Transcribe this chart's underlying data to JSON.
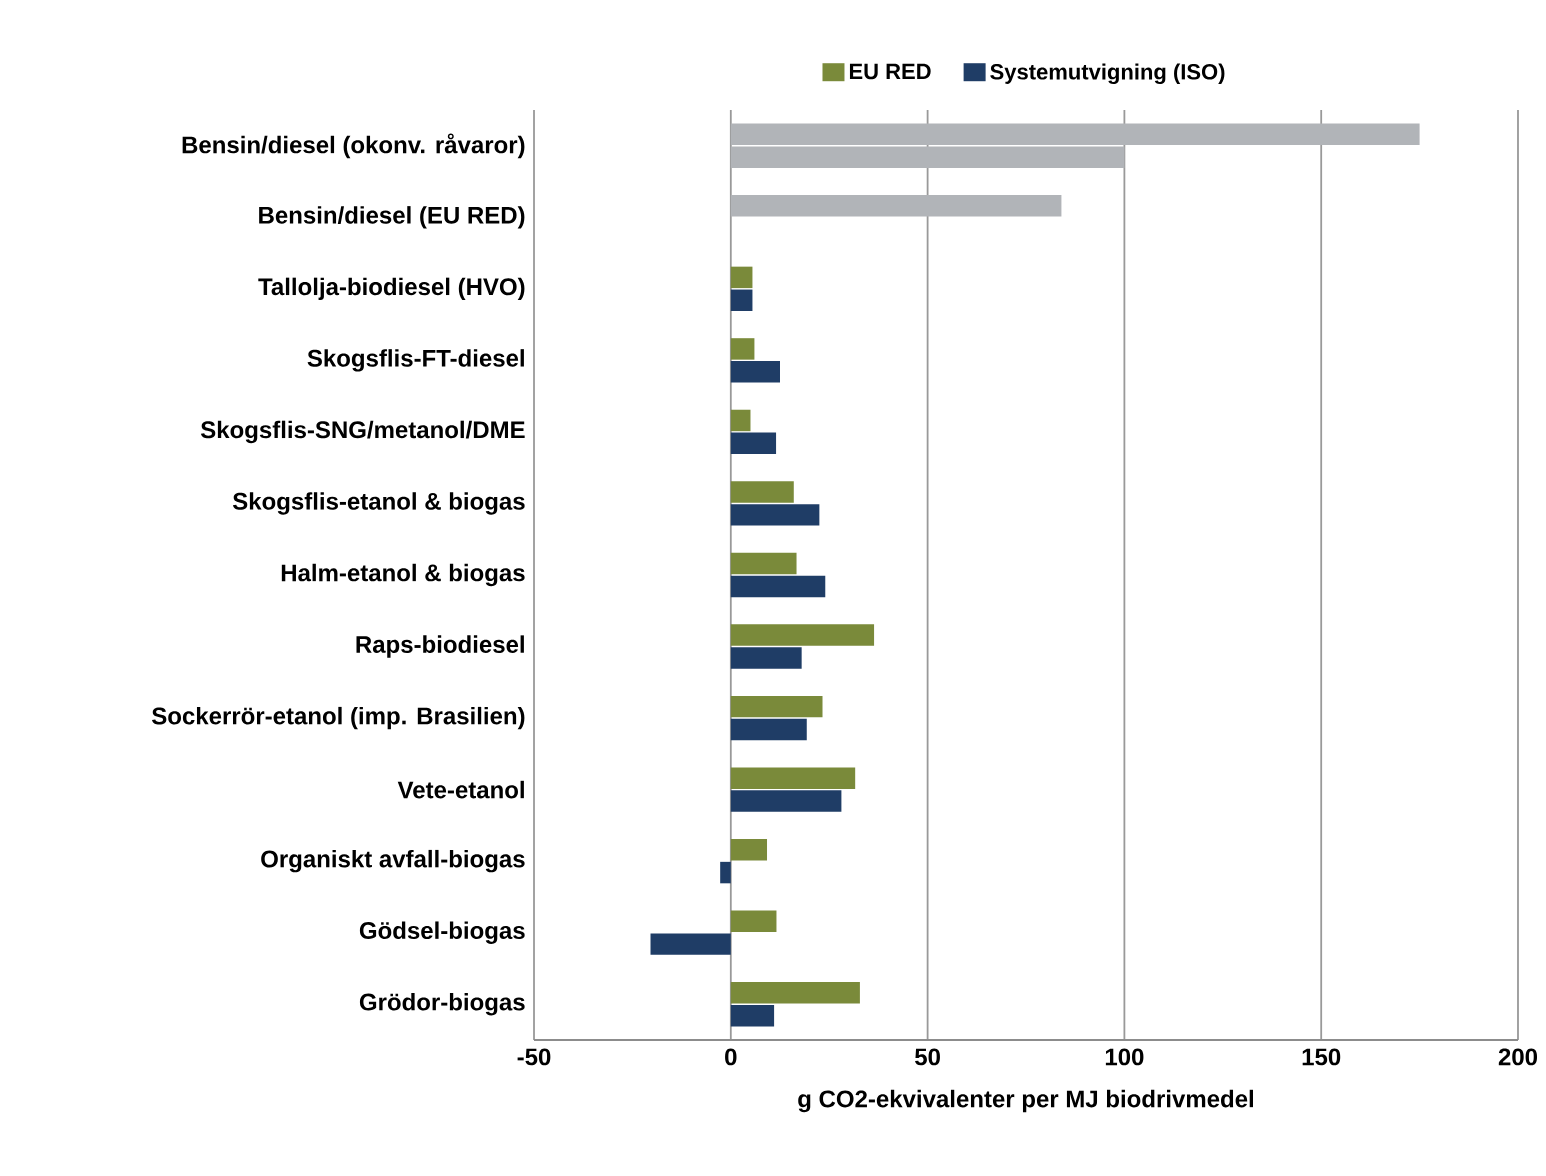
{
  "chart_data": {
    "type": "bar",
    "orientation": "horizontal",
    "xlabel": "g CO2-ekvivalenter per MJ biodrivmedel",
    "categories": [
      "Bensin/diesel (okonv. råvaror)",
      "Bensin/diesel (EU RED)",
      "Tallolja-biodiesel (HVO)",
      "Skogsflis-FT-diesel",
      "Skogsflis-SNG/metanol/DME",
      "Skogsflis-etanol & biogas",
      "Halm-etanol & biogas",
      "Raps-biodiesel",
      "Sockerrör-etanol (imp. Brasilien)",
      "Vete-etanol",
      "Organiskt avfall-biogas",
      "Gödsel-biogas",
      "Grödor-biogas"
    ],
    "series": [
      {
        "name": "EU RED",
        "color": "#7a8a3a",
        "colors": [
          "#b1b4b8",
          "#b1b4b8",
          "#7a8a3a",
          "#7a8a3a",
          "#7a8a3a",
          "#7a8a3a",
          "#7a8a3a",
          "#7a8a3a",
          "#7a8a3a",
          "#7a8a3a",
          "#7a8a3a",
          "#7a8a3a",
          "#7a8a3a"
        ],
        "values": [
          175,
          84,
          5.5,
          6,
          5,
          16,
          16.7,
          36.4,
          23.3,
          31.6,
          9.2,
          11.6,
          32.8
        ]
      },
      {
        "name": "Systemutvigning (ISO)",
        "color": "#1f3d66",
        "colors": [
          "#b1b4b8",
          null,
          "#1f3d66",
          "#1f3d66",
          "#1f3d66",
          "#1f3d66",
          "#1f3d66",
          "#1f3d66",
          "#1f3d66",
          "#1f3d66",
          "#1f3d66",
          "#1f3d66",
          "#1f3d66"
        ],
        "values": [
          100,
          null,
          5.5,
          12.5,
          11.5,
          22.5,
          24,
          18,
          19.3,
          28.1,
          -2.7,
          -20.4,
          11
        ]
      }
    ],
    "xlim": [
      -50,
      200
    ],
    "xticks": [
      -50,
      0,
      50,
      100,
      150,
      200
    ],
    "grid": "x",
    "legend": "top"
  }
}
